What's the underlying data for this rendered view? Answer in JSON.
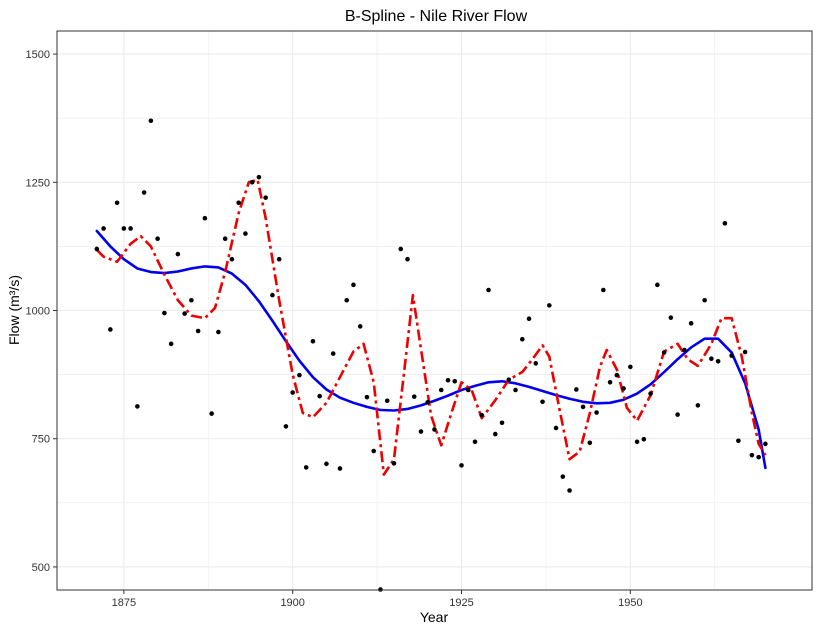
{
  "chart_data": {
    "type": "scatter",
    "title": "B-Spline - Nile River Flow",
    "xlabel": "Year",
    "ylabel": "Flow (m³/s)",
    "xlim": [
      1865.1,
      1976.9
    ],
    "ylim": [
      455,
      1545
    ],
    "xticks": [
      1875,
      1900,
      1925,
      1950
    ],
    "yticks": [
      500,
      750,
      1000,
      1250,
      1500
    ],
    "xminor": [
      1887.5,
      1912.5,
      1937.5,
      1962.5
    ],
    "yminor": [
      625,
      875,
      1125,
      1375
    ],
    "grid": true,
    "colors": {
      "points": "#000000",
      "spline_blue": "#0000ee",
      "spline_red": "#ee0000",
      "grid": "#ebebeb",
      "border": "#333333"
    },
    "points": [
      {
        "x": 1871,
        "y": 1120
      },
      {
        "x": 1872,
        "y": 1160
      },
      {
        "x": 1873,
        "y": 963
      },
      {
        "x": 1874,
        "y": 1210
      },
      {
        "x": 1875,
        "y": 1160
      },
      {
        "x": 1876,
        "y": 1160
      },
      {
        "x": 1877,
        "y": 813
      },
      {
        "x": 1878,
        "y": 1230
      },
      {
        "x": 1879,
        "y": 1370
      },
      {
        "x": 1880,
        "y": 1140
      },
      {
        "x": 1881,
        "y": 995
      },
      {
        "x": 1882,
        "y": 935
      },
      {
        "x": 1883,
        "y": 1110
      },
      {
        "x": 1884,
        "y": 994
      },
      {
        "x": 1885,
        "y": 1020
      },
      {
        "x": 1886,
        "y": 960
      },
      {
        "x": 1887,
        "y": 1180
      },
      {
        "x": 1888,
        "y": 799
      },
      {
        "x": 1889,
        "y": 958
      },
      {
        "x": 1890,
        "y": 1140
      },
      {
        "x": 1891,
        "y": 1100
      },
      {
        "x": 1892,
        "y": 1210
      },
      {
        "x": 1893,
        "y": 1150
      },
      {
        "x": 1894,
        "y": 1250
      },
      {
        "x": 1895,
        "y": 1260
      },
      {
        "x": 1896,
        "y": 1220
      },
      {
        "x": 1897,
        "y": 1030
      },
      {
        "x": 1898,
        "y": 1100
      },
      {
        "x": 1899,
        "y": 774
      },
      {
        "x": 1900,
        "y": 840
      },
      {
        "x": 1901,
        "y": 874
      },
      {
        "x": 1902,
        "y": 694
      },
      {
        "x": 1903,
        "y": 940
      },
      {
        "x": 1904,
        "y": 833
      },
      {
        "x": 1905,
        "y": 701
      },
      {
        "x": 1906,
        "y": 916
      },
      {
        "x": 1907,
        "y": 692
      },
      {
        "x": 1908,
        "y": 1020
      },
      {
        "x": 1909,
        "y": 1050
      },
      {
        "x": 1910,
        "y": 969
      },
      {
        "x": 1911,
        "y": 831
      },
      {
        "x": 1912,
        "y": 726
      },
      {
        "x": 1913,
        "y": 456
      },
      {
        "x": 1914,
        "y": 824
      },
      {
        "x": 1915,
        "y": 702
      },
      {
        "x": 1916,
        "y": 1120
      },
      {
        "x": 1917,
        "y": 1100
      },
      {
        "x": 1918,
        "y": 832
      },
      {
        "x": 1919,
        "y": 764
      },
      {
        "x": 1920,
        "y": 821
      },
      {
        "x": 1921,
        "y": 768
      },
      {
        "x": 1922,
        "y": 845
      },
      {
        "x": 1923,
        "y": 864
      },
      {
        "x": 1924,
        "y": 862
      },
      {
        "x": 1925,
        "y": 698
      },
      {
        "x": 1926,
        "y": 845
      },
      {
        "x": 1927,
        "y": 744
      },
      {
        "x": 1928,
        "y": 796
      },
      {
        "x": 1929,
        "y": 1040
      },
      {
        "x": 1930,
        "y": 759
      },
      {
        "x": 1931,
        "y": 781
      },
      {
        "x": 1932,
        "y": 865
      },
      {
        "x": 1933,
        "y": 845
      },
      {
        "x": 1934,
        "y": 944
      },
      {
        "x": 1935,
        "y": 984
      },
      {
        "x": 1936,
        "y": 897
      },
      {
        "x": 1937,
        "y": 822
      },
      {
        "x": 1938,
        "y": 1010
      },
      {
        "x": 1939,
        "y": 771
      },
      {
        "x": 1940,
        "y": 676
      },
      {
        "x": 1941,
        "y": 649
      },
      {
        "x": 1942,
        "y": 846
      },
      {
        "x": 1943,
        "y": 812
      },
      {
        "x": 1944,
        "y": 742
      },
      {
        "x": 1945,
        "y": 801
      },
      {
        "x": 1946,
        "y": 1040
      },
      {
        "x": 1947,
        "y": 860
      },
      {
        "x": 1948,
        "y": 874
      },
      {
        "x": 1949,
        "y": 848
      },
      {
        "x": 1950,
        "y": 890
      },
      {
        "x": 1951,
        "y": 744
      },
      {
        "x": 1952,
        "y": 749
      },
      {
        "x": 1953,
        "y": 838
      },
      {
        "x": 1954,
        "y": 1050
      },
      {
        "x": 1955,
        "y": 918
      },
      {
        "x": 1956,
        "y": 986
      },
      {
        "x": 1957,
        "y": 797
      },
      {
        "x": 1958,
        "y": 923
      },
      {
        "x": 1959,
        "y": 975
      },
      {
        "x": 1960,
        "y": 815
      },
      {
        "x": 1961,
        "y": 1020
      },
      {
        "x": 1962,
        "y": 906
      },
      {
        "x": 1963,
        "y": 901
      },
      {
        "x": 1964,
        "y": 1170
      },
      {
        "x": 1965,
        "y": 912
      },
      {
        "x": 1966,
        "y": 746
      },
      {
        "x": 1967,
        "y": 919
      },
      {
        "x": 1968,
        "y": 718
      },
      {
        "x": 1969,
        "y": 714
      },
      {
        "x": 1970,
        "y": 740
      }
    ],
    "series": [
      {
        "style": "solid",
        "color": "#0000ee",
        "x": [
          1871,
          1873,
          1875,
          1877,
          1879,
          1881,
          1883,
          1885,
          1887,
          1889,
          1891,
          1893,
          1895,
          1897,
          1899,
          1901,
          1903,
          1905,
          1907,
          1909,
          1911,
          1913,
          1915,
          1917,
          1919,
          1921,
          1923,
          1925,
          1927,
          1929,
          1931,
          1933,
          1935,
          1937,
          1939,
          1941,
          1943,
          1945,
          1947,
          1949,
          1951,
          1953,
          1955,
          1957,
          1959,
          1961,
          1963,
          1965,
          1967,
          1969,
          1970
        ],
        "y": [
          1155,
          1125,
          1100,
          1082,
          1075,
          1073,
          1076,
          1082,
          1086,
          1084,
          1072,
          1050,
          1018,
          980,
          940,
          902,
          870,
          846,
          830,
          820,
          812,
          806,
          805,
          808,
          815,
          824,
          834,
          845,
          853,
          860,
          862,
          858,
          851,
          843,
          835,
          828,
          822,
          819,
          820,
          826,
          838,
          856,
          880,
          905,
          928,
          945,
          945,
          918,
          858,
          768,
          693
        ]
      },
      {
        "style": "dashed",
        "color": "#ee0000",
        "x": [
          1871,
          1872,
          1874,
          1876,
          1877.5,
          1879,
          1881,
          1883,
          1885,
          1887,
          1888.5,
          1890,
          1892,
          1893.5,
          1894.8,
          1896,
          1898,
          1900,
          1901.5,
          1903,
          1905,
          1907,
          1909,
          1910.5,
          1912,
          1913.5,
          1915,
          1916.5,
          1917.8,
          1919,
          1920.5,
          1922,
          1923.5,
          1925,
          1926.5,
          1928,
          1930,
          1932,
          1934,
          1935.5,
          1937,
          1938,
          1939.5,
          1941,
          1942.5,
          1944,
          1945.5,
          1946.5,
          1948,
          1949.5,
          1951,
          1953,
          1955,
          1957,
          1958.5,
          1960,
          1962,
          1963.5,
          1965,
          1966.5,
          1968,
          1969,
          1970
        ],
        "y": [
          1118,
          1105,
          1095,
          1130,
          1145,
          1125,
          1070,
          1020,
          990,
          985,
          1005,
          1075,
          1190,
          1250,
          1255,
          1180,
          1020,
          875,
          800,
          792,
          820,
          870,
          920,
          935,
          860,
          680,
          710,
          880,
          1030,
          925,
          795,
          737,
          800,
          860,
          845,
          790,
          825,
          865,
          880,
          905,
          932,
          910,
          808,
          710,
          725,
          800,
          890,
          923,
          885,
          810,
          785,
          835,
          920,
          935,
          905,
          892,
          935,
          985,
          985,
          910,
          800,
          740,
          718
        ]
      }
    ]
  }
}
